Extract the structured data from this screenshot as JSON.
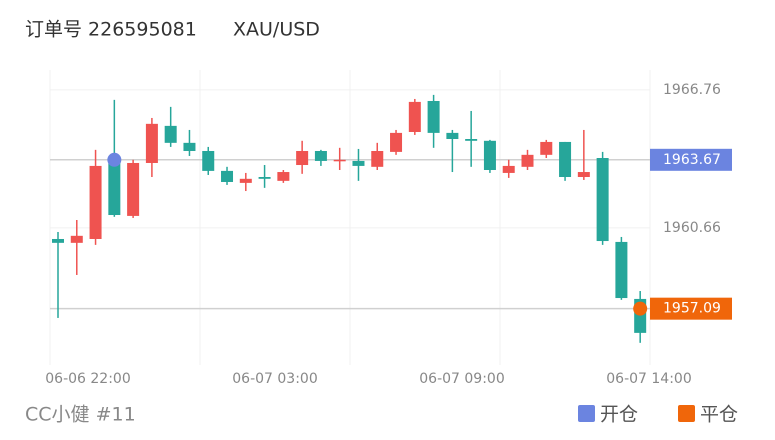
{
  "header": {
    "order": "订单号 226595081",
    "symbol": "XAU/USD"
  },
  "chart_data": {
    "type": "candlestick",
    "up_color": "#ef5350",
    "down_color": "#26a69a",
    "open": [
      1960.17,
      1960.0,
      1960.17,
      1963.53,
      1961.19,
      1963.53,
      1965.17,
      1964.42,
      1964.06,
      1963.18,
      1962.65,
      1962.91,
      1962.74,
      1963.44,
      1964.06,
      1963.62,
      1963.62,
      1963.36,
      1964.02,
      1964.9,
      1966.27,
      1964.86,
      1964.59,
      1964.51,
      1963.09,
      1963.36,
      1963.89,
      1964.46,
      1962.91,
      1963.75,
      1960.04,
      1957.52
    ],
    "high": [
      1960.48,
      1961.01,
      1964.11,
      1966.32,
      1963.67,
      1965.52,
      1966.01,
      1964.99,
      1964.24,
      1963.36,
      1963.09,
      1963.44,
      1963.22,
      1964.51,
      1964.11,
      1964.2,
      1964.15,
      1964.42,
      1964.99,
      1966.36,
      1966.54,
      1964.99,
      1965.83,
      1964.55,
      1963.67,
      1964.11,
      1964.55,
      1964.46,
      1964.99,
      1964.02,
      1960.26,
      1957.87
    ],
    "low": [
      1956.68,
      1958.58,
      1959.91,
      1961.15,
      1961.1,
      1962.91,
      1964.24,
      1963.84,
      1963.0,
      1962.56,
      1962.29,
      1962.43,
      1962.65,
      1963.05,
      1963.4,
      1963.22,
      1962.74,
      1963.22,
      1963.89,
      1964.77,
      1964.2,
      1963.13,
      1963.36,
      1963.09,
      1962.87,
      1963.22,
      1963.75,
      1962.74,
      1962.78,
      1959.91,
      1957.48,
      1955.58
    ],
    "close": [
      1960.0,
      1960.31,
      1963.4,
      1961.23,
      1963.53,
      1965.26,
      1964.42,
      1964.06,
      1963.18,
      1962.69,
      1962.83,
      1962.83,
      1963.13,
      1964.06,
      1963.62,
      1963.67,
      1963.4,
      1964.06,
      1964.86,
      1966.23,
      1964.86,
      1964.59,
      1964.51,
      1963.22,
      1963.4,
      1963.89,
      1964.46,
      1962.91,
      1963.13,
      1960.08,
      1957.56,
      1956.02
    ],
    "x_labels": [
      "06-06 22:00",
      "06-07 03:00",
      "06-07 09:00",
      "06-07 14:00"
    ],
    "ylim": [
      1954.6,
      1967.64
    ],
    "yticks": [
      1966.76,
      1960.66
    ],
    "entry": {
      "label": "开仓",
      "value": 1963.67,
      "color": "#6b84e0"
    },
    "exit": {
      "label": "平仓",
      "value": 1957.09,
      "color": "#f0660a"
    }
  },
  "footer": {
    "author": "CC小健 #11"
  }
}
